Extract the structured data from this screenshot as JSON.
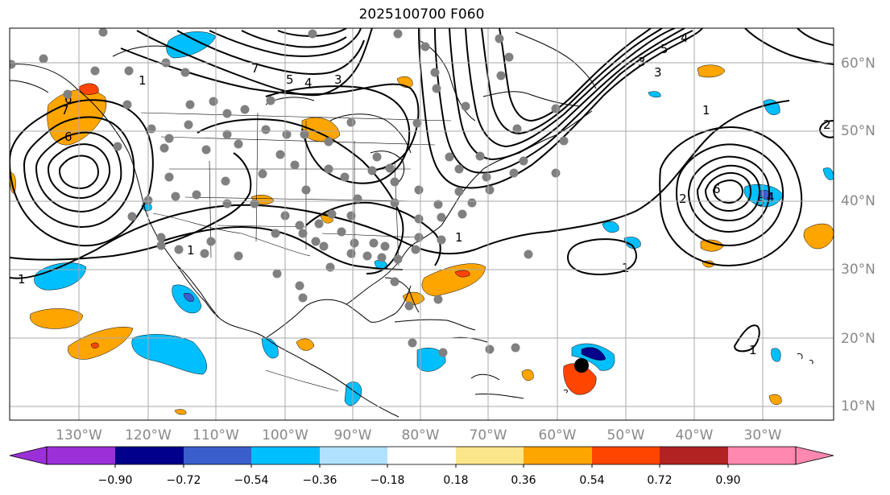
{
  "title": "2025100700 F060",
  "longitude_labels": [
    "130°W",
    "120°W",
    "110°W",
    "100°W",
    "90°W",
    "80°W",
    "70°W",
    "60°W",
    "50°W",
    "40°W",
    "30°W"
  ],
  "latitude_labels": [
    "60°N",
    "50°N",
    "40°N",
    "30°N",
    "20°N",
    "10°N"
  ],
  "colorbar": {
    "tick_labels": [
      "−0.90",
      "−0.72",
      "−0.54",
      "−0.36",
      "−0.18",
      "0.18",
      "0.36",
      "0.54",
      "0.72",
      "0.90"
    ],
    "colors": [
      "#9b30d8",
      "#00008b",
      "#3a5fcd",
      "#00bfff",
      "#b0e2ff",
      "#ffffff",
      "#fce68a",
      "#ffa500",
      "#ff4500",
      "#b22222",
      "#ff88b0"
    ]
  },
  "contour_labels": [
    "1",
    "1",
    "1",
    "1",
    "1",
    "3",
    "4",
    "5",
    "6",
    "7",
    "2",
    "3",
    "4",
    "5",
    "6",
    "7",
    "2",
    "3",
    "1",
    "6",
    "5",
    "4",
    "1"
  ],
  "colors": {
    "gridline": "#aaaaaa",
    "coastline": "#000000",
    "station_dot": "#808080",
    "storm_marker": "#000000"
  }
}
